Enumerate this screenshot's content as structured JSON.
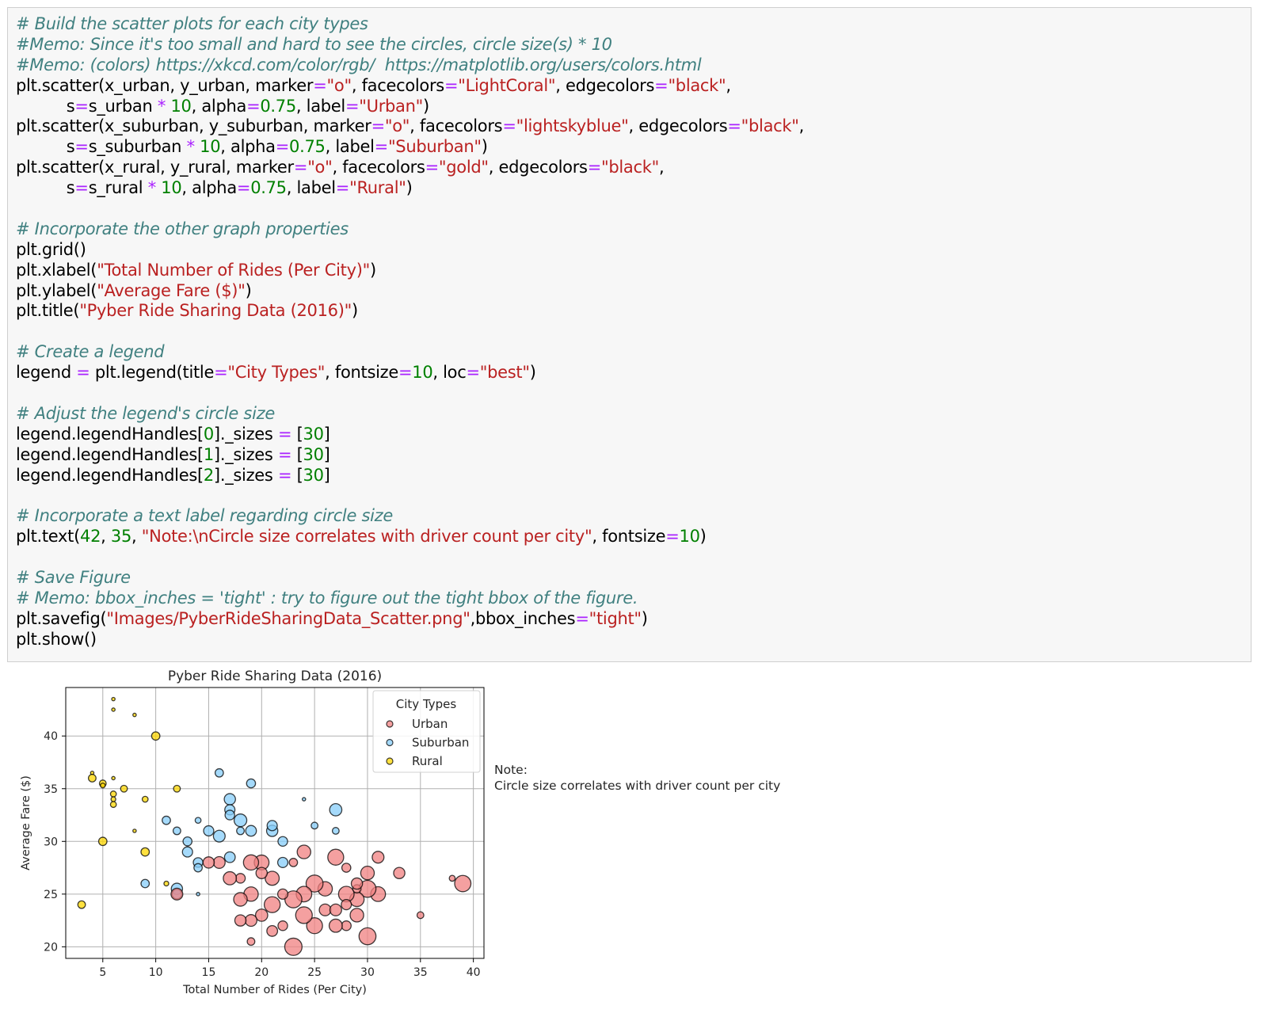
{
  "code_lines": [
    [
      {
        "t": "cm",
        "v": "# Build the scatter plots for each city types"
      }
    ],
    [
      {
        "t": "cm",
        "v": "#Memo: Since it's too small and hard to see the circles, circle size(s) * 10"
      }
    ],
    [
      {
        "t": "cm",
        "v": "#Memo: (colors) https://xkcd.com/color/rgb/  https://matplotlib.org/users/colors.html"
      }
    ],
    [
      {
        "t": "",
        "v": "plt.scatter(x_urban, y_urban, marker"
      },
      {
        "t": "op",
        "v": "="
      },
      {
        "t": "st",
        "v": "\"o\""
      },
      {
        "t": "",
        "v": ", facecolors"
      },
      {
        "t": "op",
        "v": "="
      },
      {
        "t": "st",
        "v": "\"LightCoral\""
      },
      {
        "t": "",
        "v": ", edgecolors"
      },
      {
        "t": "op",
        "v": "="
      },
      {
        "t": "st",
        "v": "\"black\""
      },
      {
        "t": "",
        "v": ","
      }
    ],
    [
      {
        "t": "",
        "v": "          s"
      },
      {
        "t": "op",
        "v": "="
      },
      {
        "t": "",
        "v": "s_urban "
      },
      {
        "t": "op",
        "v": "*"
      },
      {
        "t": "",
        "v": " "
      },
      {
        "t": "nu",
        "v": "10"
      },
      {
        "t": "",
        "v": ", alpha"
      },
      {
        "t": "op",
        "v": "="
      },
      {
        "t": "nu",
        "v": "0.75"
      },
      {
        "t": "",
        "v": ", label"
      },
      {
        "t": "op",
        "v": "="
      },
      {
        "t": "st",
        "v": "\"Urban\""
      },
      {
        "t": "",
        "v": ")"
      }
    ],
    [
      {
        "t": "",
        "v": "plt.scatter(x_suburban, y_suburban, marker"
      },
      {
        "t": "op",
        "v": "="
      },
      {
        "t": "st",
        "v": "\"o\""
      },
      {
        "t": "",
        "v": ", facecolors"
      },
      {
        "t": "op",
        "v": "="
      },
      {
        "t": "st",
        "v": "\"lightskyblue\""
      },
      {
        "t": "",
        "v": ", edgecolors"
      },
      {
        "t": "op",
        "v": "="
      },
      {
        "t": "st",
        "v": "\"black\""
      },
      {
        "t": "",
        "v": ","
      }
    ],
    [
      {
        "t": "",
        "v": "          s"
      },
      {
        "t": "op",
        "v": "="
      },
      {
        "t": "",
        "v": "s_suburban "
      },
      {
        "t": "op",
        "v": "*"
      },
      {
        "t": "",
        "v": " "
      },
      {
        "t": "nu",
        "v": "10"
      },
      {
        "t": "",
        "v": ", alpha"
      },
      {
        "t": "op",
        "v": "="
      },
      {
        "t": "nu",
        "v": "0.75"
      },
      {
        "t": "",
        "v": ", label"
      },
      {
        "t": "op",
        "v": "="
      },
      {
        "t": "st",
        "v": "\"Suburban\""
      },
      {
        "t": "",
        "v": ")"
      }
    ],
    [
      {
        "t": "",
        "v": "plt.scatter(x_rural, y_rural, marker"
      },
      {
        "t": "op",
        "v": "="
      },
      {
        "t": "st",
        "v": "\"o\""
      },
      {
        "t": "",
        "v": ", facecolors"
      },
      {
        "t": "op",
        "v": "="
      },
      {
        "t": "st",
        "v": "\"gold\""
      },
      {
        "t": "",
        "v": ", edgecolors"
      },
      {
        "t": "op",
        "v": "="
      },
      {
        "t": "st",
        "v": "\"black\""
      },
      {
        "t": "",
        "v": ","
      }
    ],
    [
      {
        "t": "",
        "v": "          s"
      },
      {
        "t": "op",
        "v": "="
      },
      {
        "t": "",
        "v": "s_rural "
      },
      {
        "t": "op",
        "v": "*"
      },
      {
        "t": "",
        "v": " "
      },
      {
        "t": "nu",
        "v": "10"
      },
      {
        "t": "",
        "v": ", alpha"
      },
      {
        "t": "op",
        "v": "="
      },
      {
        "t": "nu",
        "v": "0.75"
      },
      {
        "t": "",
        "v": ", label"
      },
      {
        "t": "op",
        "v": "="
      },
      {
        "t": "st",
        "v": "\"Rural\""
      },
      {
        "t": "",
        "v": ")"
      }
    ],
    [],
    [
      {
        "t": "cm",
        "v": "# Incorporate the other graph properties"
      }
    ],
    [
      {
        "t": "",
        "v": "plt.grid()"
      }
    ],
    [
      {
        "t": "",
        "v": "plt.xlabel("
      },
      {
        "t": "st",
        "v": "\"Total Number of Rides (Per City)\""
      },
      {
        "t": "",
        "v": ")"
      }
    ],
    [
      {
        "t": "",
        "v": "plt.ylabel("
      },
      {
        "t": "st",
        "v": "\"Average Fare ($)\""
      },
      {
        "t": "",
        "v": ")"
      }
    ],
    [
      {
        "t": "",
        "v": "plt.title("
      },
      {
        "t": "st",
        "v": "\"Pyber Ride Sharing Data (2016)\""
      },
      {
        "t": "",
        "v": ")"
      }
    ],
    [],
    [
      {
        "t": "cm",
        "v": "# Create a legend"
      }
    ],
    [
      {
        "t": "",
        "v": "legend "
      },
      {
        "t": "op",
        "v": "="
      },
      {
        "t": "",
        "v": " plt.legend(title"
      },
      {
        "t": "op",
        "v": "="
      },
      {
        "t": "st",
        "v": "\"City Types\""
      },
      {
        "t": "",
        "v": ", fontsize"
      },
      {
        "t": "op",
        "v": "="
      },
      {
        "t": "nu",
        "v": "10"
      },
      {
        "t": "",
        "v": ", loc"
      },
      {
        "t": "op",
        "v": "="
      },
      {
        "t": "st",
        "v": "\"best\""
      },
      {
        "t": "",
        "v": ")"
      }
    ],
    [],
    [
      {
        "t": "cm",
        "v": "# Adjust the legend's circle size"
      }
    ],
    [
      {
        "t": "",
        "v": "legend.legendHandles["
      },
      {
        "t": "nu",
        "v": "0"
      },
      {
        "t": "",
        "v": "]._sizes "
      },
      {
        "t": "op",
        "v": "="
      },
      {
        "t": "",
        "v": " ["
      },
      {
        "t": "nu",
        "v": "30"
      },
      {
        "t": "",
        "v": "]"
      }
    ],
    [
      {
        "t": "",
        "v": "legend.legendHandles["
      },
      {
        "t": "nu",
        "v": "1"
      },
      {
        "t": "",
        "v": "]._sizes "
      },
      {
        "t": "op",
        "v": "="
      },
      {
        "t": "",
        "v": " ["
      },
      {
        "t": "nu",
        "v": "30"
      },
      {
        "t": "",
        "v": "]"
      }
    ],
    [
      {
        "t": "",
        "v": "legend.legendHandles["
      },
      {
        "t": "nu",
        "v": "2"
      },
      {
        "t": "",
        "v": "]._sizes "
      },
      {
        "t": "op",
        "v": "="
      },
      {
        "t": "",
        "v": " ["
      },
      {
        "t": "nu",
        "v": "30"
      },
      {
        "t": "",
        "v": "]"
      }
    ],
    [],
    [
      {
        "t": "cm",
        "v": "# Incorporate a text label regarding circle size"
      }
    ],
    [
      {
        "t": "",
        "v": "plt.text("
      },
      {
        "t": "nu",
        "v": "42"
      },
      {
        "t": "",
        "v": ", "
      },
      {
        "t": "nu",
        "v": "35"
      },
      {
        "t": "",
        "v": ", "
      },
      {
        "t": "st",
        "v": "\"Note:\\nCircle size correlates with driver count per city\""
      },
      {
        "t": "",
        "v": ", fontsize"
      },
      {
        "t": "op",
        "v": "="
      },
      {
        "t": "nu",
        "v": "10"
      },
      {
        "t": "",
        "v": ")"
      }
    ],
    [],
    [
      {
        "t": "cm",
        "v": "# Save Figure"
      }
    ],
    [
      {
        "t": "cm",
        "v": "# Memo: bbox_inches = 'tight' : try to figure out the tight bbox of the figure."
      }
    ],
    [
      {
        "t": "",
        "v": "plt.savefig("
      },
      {
        "t": "st",
        "v": "\"Images/PyberRideSharingData_Scatter.png\""
      },
      {
        "t": "",
        "v": ",bbox_inches"
      },
      {
        "t": "op",
        "v": "="
      },
      {
        "t": "st",
        "v": "\"tight\""
      },
      {
        "t": "",
        "v": ")"
      }
    ],
    [
      {
        "t": "",
        "v": "plt.show()"
      }
    ]
  ],
  "chart_data": {
    "type": "scatter",
    "title": "Pyber Ride Sharing Data (2016)",
    "xlabel": "Total Number of Rides (Per City)",
    "ylabel": "Average Fare ($)",
    "xlim": [
      1.5,
      41
    ],
    "ylim": [
      18.9,
      44.6
    ],
    "xticks": [
      5,
      10,
      15,
      20,
      25,
      30,
      35,
      40
    ],
    "yticks": [
      20,
      25,
      30,
      35,
      40
    ],
    "grid": true,
    "legend": {
      "title": "City Types",
      "placement": "top-right"
    },
    "annotation": {
      "x": 42,
      "y": 35,
      "lines": [
        "Note:",
        "Circle size correlates with driver count per city"
      ]
    },
    "series": [
      {
        "name": "Suburban",
        "color": "#87cefa",
        "points": [
          [
            16,
            36.5
          ],
          [
            17,
            34
          ],
          [
            17,
            33
          ],
          [
            18,
            32
          ],
          [
            17,
            32.5
          ],
          [
            19,
            35.5
          ],
          [
            19,
            31
          ],
          [
            16,
            30.5
          ],
          [
            15,
            31
          ],
          [
            13,
            30
          ],
          [
            13,
            29
          ],
          [
            14,
            28
          ],
          [
            14,
            27.5
          ],
          [
            17,
            28.5
          ],
          [
            11,
            32
          ],
          [
            12,
            31
          ],
          [
            21,
            31
          ],
          [
            21,
            31.5
          ],
          [
            22,
            30
          ],
          [
            22,
            28
          ],
          [
            27,
            33
          ],
          [
            27,
            31
          ],
          [
            25,
            31.5
          ],
          [
            12,
            25.5
          ],
          [
            12,
            25
          ],
          [
            9,
            26
          ],
          [
            14,
            25
          ],
          [
            14,
            32
          ],
          [
            18,
            31
          ],
          [
            24,
            34
          ]
        ],
        "sizes": [
          6,
          11,
          9,
          14,
          8,
          7,
          10,
          12,
          9,
          7,
          9,
          8,
          6,
          10,
          6,
          5,
          11,
          9,
          8,
          9,
          13,
          4,
          4,
          11,
          8,
          6,
          1,
          3,
          5,
          1
        ]
      },
      {
        "name": "Rural",
        "color": "#ffd700",
        "points": [
          [
            6,
            43.5
          ],
          [
            6,
            42.5
          ],
          [
            8,
            42
          ],
          [
            10,
            40
          ],
          [
            4,
            36.5
          ],
          [
            4,
            36
          ],
          [
            5,
            35.5
          ],
          [
            6,
            34.5
          ],
          [
            6,
            34
          ],
          [
            7,
            35
          ],
          [
            6,
            33.5
          ],
          [
            9,
            34
          ],
          [
            12,
            35
          ],
          [
            5,
            30
          ],
          [
            9,
            29
          ],
          [
            8,
            31
          ],
          [
            3,
            24
          ],
          [
            11,
            26
          ],
          [
            6,
            36
          ],
          [
            5,
            35.3
          ]
        ],
        "sizes": [
          1,
          1,
          1,
          6,
          1,
          5,
          4,
          3,
          2,
          4,
          3,
          3,
          4,
          6,
          6,
          1,
          5,
          2,
          1,
          2
        ]
      },
      {
        "name": "Urban",
        "color": "#f08080",
        "points": [
          [
            39,
            26
          ],
          [
            38,
            26.5
          ],
          [
            35,
            23
          ],
          [
            33,
            27
          ],
          [
            31,
            28.5
          ],
          [
            31,
            25
          ],
          [
            30,
            27
          ],
          [
            30,
            25.5
          ],
          [
            30,
            21
          ],
          [
            29,
            24.5
          ],
          [
            29,
            23
          ],
          [
            28,
            22
          ],
          [
            28,
            25
          ],
          [
            28,
            27.5
          ],
          [
            27,
            28.5
          ],
          [
            27,
            22
          ],
          [
            26,
            23.5
          ],
          [
            26,
            25.5
          ],
          [
            25,
            26
          ],
          [
            25,
            22
          ],
          [
            24,
            23
          ],
          [
            24,
            25
          ],
          [
            24,
            29
          ],
          [
            23,
            20
          ],
          [
            23,
            24.5
          ],
          [
            23,
            28
          ],
          [
            22,
            22
          ],
          [
            22,
            25
          ],
          [
            21,
            21.5
          ],
          [
            21,
            26.5
          ],
          [
            21,
            24
          ],
          [
            20,
            23
          ],
          [
            20,
            28
          ],
          [
            20,
            27
          ],
          [
            19,
            25
          ],
          [
            19,
            22.5
          ],
          [
            19,
            20.5
          ],
          [
            18,
            26.5
          ],
          [
            18,
            22.5
          ],
          [
            18,
            24.5
          ],
          [
            17,
            26.5
          ],
          [
            16,
            28
          ],
          [
            28,
            24
          ],
          [
            29,
            25.5
          ],
          [
            29,
            26
          ],
          [
            27,
            23.5
          ],
          [
            12,
            25
          ],
          [
            15,
            28
          ],
          [
            19,
            28
          ]
        ],
        "sizes": [
          23,
          3,
          4,
          11,
          12,
          19,
          16,
          25,
          25,
          18,
          16,
          8,
          21,
          7,
          22,
          15,
          12,
          18,
          25,
          22,
          24,
          21,
          16,
          26,
          25,
          6,
          8,
          9,
          10,
          17,
          22,
          13,
          19,
          11,
          18,
          12,
          5,
          8,
          11,
          16,
          15,
          12,
          9,
          6,
          11,
          12,
          12,
          11,
          20
        ]
      }
    ]
  }
}
